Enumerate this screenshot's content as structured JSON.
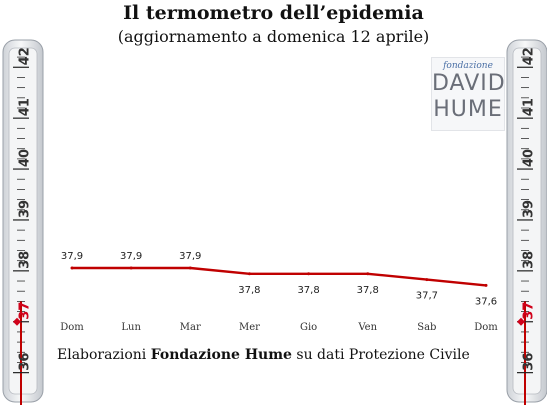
{
  "title": "Il termometro dell’epidemia",
  "subtitle": "(aggiornamento a domenica 12 aprile)",
  "source": {
    "prefix": "Elaborazioni ",
    "org": "Fondazione Hume",
    "suffix": " su dati Protezione Civile"
  },
  "logo": {
    "line1": "fondazione",
    "line2": "DAVID",
    "line3": "HUME"
  },
  "thermometer": {
    "scale_min": 35.6,
    "scale_max": 42.3,
    "ticks": [
      36,
      37,
      38,
      39,
      40,
      41,
      42
    ],
    "marker": 37,
    "marker_color": "#d0021b",
    "mercury_top": 37.4,
    "mercury_color": "#c00000"
  },
  "chart_data": {
    "type": "line",
    "categories": [
      "Dom",
      "Lun",
      "Mar",
      "Mer",
      "Gio",
      "Ven",
      "Sab",
      "Dom"
    ],
    "series": [
      {
        "values": [
          37.9,
          37.9,
          37.9,
          37.8,
          37.8,
          37.8,
          37.7,
          37.6
        ]
      }
    ],
    "data_labels": [
      "37,9",
      "37,9",
      "37,9",
      "37,8",
      "37,8",
      "37,8",
      "37,7",
      "37,6"
    ],
    "color": "#c00000",
    "grid": false,
    "legend": "none"
  }
}
